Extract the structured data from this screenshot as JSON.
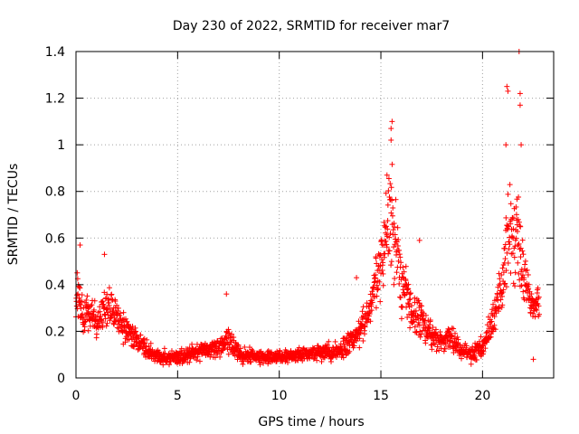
{
  "chart_data": {
    "type": "scatter",
    "title": "Day 230 of 2022, SRMTID for receiver mar7",
    "xlabel": "GPS time / hours",
    "ylabel": "SRMTID / TECUs",
    "xlim": [
      0,
      23.5
    ],
    "ylim": [
      0,
      1.4
    ],
    "x_ticks": [
      0,
      5,
      10,
      15,
      20
    ],
    "x_tick_labels": [
      "0",
      "5",
      "10",
      "15",
      "20"
    ],
    "y_ticks": [
      0,
      0.2,
      0.4,
      0.6,
      0.8,
      1.0,
      1.2,
      1.4
    ],
    "y_tick_labels": [
      "0",
      "0.2",
      "0.4",
      "0.6",
      "0.8",
      "1",
      "1.2",
      "1.4"
    ],
    "grid": true,
    "marker": "plus",
    "color": "#ff0000",
    "series": [
      {
        "name": "SRMTID",
        "envelope": [
          {
            "x": 0.0,
            "y": 0.35,
            "spread": 0.18
          },
          {
            "x": 0.5,
            "y": 0.27,
            "spread": 0.12
          },
          {
            "x": 1.0,
            "y": 0.25,
            "spread": 0.1
          },
          {
            "x": 1.5,
            "y": 0.3,
            "spread": 0.12
          },
          {
            "x": 2.0,
            "y": 0.25,
            "spread": 0.1
          },
          {
            "x": 2.5,
            "y": 0.2,
            "spread": 0.08
          },
          {
            "x": 3.0,
            "y": 0.17,
            "spread": 0.07
          },
          {
            "x": 3.5,
            "y": 0.12,
            "spread": 0.05
          },
          {
            "x": 4.0,
            "y": 0.09,
            "spread": 0.04
          },
          {
            "x": 5.0,
            "y": 0.09,
            "spread": 0.04
          },
          {
            "x": 6.0,
            "y": 0.11,
            "spread": 0.05
          },
          {
            "x": 7.0,
            "y": 0.13,
            "spread": 0.06
          },
          {
            "x": 7.5,
            "y": 0.17,
            "spread": 0.09
          },
          {
            "x": 8.0,
            "y": 0.1,
            "spread": 0.05
          },
          {
            "x": 9.0,
            "y": 0.09,
            "spread": 0.04
          },
          {
            "x": 10.0,
            "y": 0.09,
            "spread": 0.04
          },
          {
            "x": 11.0,
            "y": 0.1,
            "spread": 0.04
          },
          {
            "x": 12.0,
            "y": 0.11,
            "spread": 0.05
          },
          {
            "x": 13.0,
            "y": 0.11,
            "spread": 0.05
          },
          {
            "x": 13.8,
            "y": 0.18,
            "spread": 0.09
          },
          {
            "x": 14.5,
            "y": 0.3,
            "spread": 0.12
          },
          {
            "x": 15.0,
            "y": 0.5,
            "spread": 0.22
          },
          {
            "x": 15.5,
            "y": 0.72,
            "spread": 0.3
          },
          {
            "x": 16.0,
            "y": 0.42,
            "spread": 0.18
          },
          {
            "x": 16.5,
            "y": 0.3,
            "spread": 0.14
          },
          {
            "x": 17.0,
            "y": 0.25,
            "spread": 0.14
          },
          {
            "x": 17.5,
            "y": 0.17,
            "spread": 0.08
          },
          {
            "x": 18.0,
            "y": 0.15,
            "spread": 0.07
          },
          {
            "x": 18.5,
            "y": 0.17,
            "spread": 0.08
          },
          {
            "x": 19.0,
            "y": 0.12,
            "spread": 0.05
          },
          {
            "x": 19.5,
            "y": 0.1,
            "spread": 0.05
          },
          {
            "x": 20.0,
            "y": 0.13,
            "spread": 0.06
          },
          {
            "x": 20.5,
            "y": 0.25,
            "spread": 0.1
          },
          {
            "x": 21.0,
            "y": 0.42,
            "spread": 0.2
          },
          {
            "x": 21.3,
            "y": 0.65,
            "spread": 0.3
          },
          {
            "x": 21.7,
            "y": 0.6,
            "spread": 0.3
          },
          {
            "x": 22.0,
            "y": 0.45,
            "spread": 0.2
          },
          {
            "x": 22.5,
            "y": 0.3,
            "spread": 0.12
          },
          {
            "x": 22.8,
            "y": 0.32,
            "spread": 0.12
          }
        ],
        "outliers": [
          {
            "x": 15.5,
            "y": 1.07
          },
          {
            "x": 15.55,
            "y": 1.1
          },
          {
            "x": 15.5,
            "y": 1.02
          },
          {
            "x": 15.3,
            "y": 0.87
          },
          {
            "x": 21.2,
            "y": 1.25
          },
          {
            "x": 21.25,
            "y": 1.23
          },
          {
            "x": 21.15,
            "y": 1.0
          },
          {
            "x": 21.8,
            "y": 1.4
          },
          {
            "x": 21.85,
            "y": 1.22
          },
          {
            "x": 21.85,
            "y": 1.17
          },
          {
            "x": 21.9,
            "y": 1.0
          },
          {
            "x": 7.4,
            "y": 0.36
          },
          {
            "x": 0.2,
            "y": 0.57
          },
          {
            "x": 1.4,
            "y": 0.53
          },
          {
            "x": 16.9,
            "y": 0.59
          },
          {
            "x": 13.8,
            "y": 0.43
          },
          {
            "x": 22.5,
            "y": 0.08
          }
        ]
      }
    ]
  }
}
